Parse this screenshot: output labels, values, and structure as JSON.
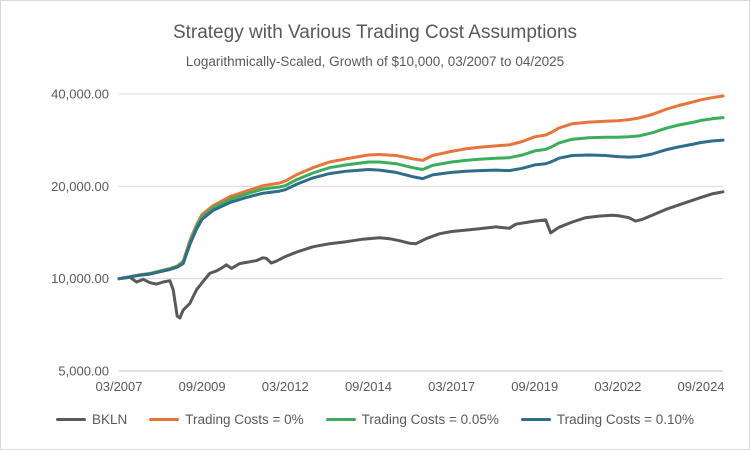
{
  "chart_data": {
    "type": "line",
    "title": "Strategy with Various Trading Cost Assumptions",
    "subtitle": "Logarithmically-Scaled, Growth of $10,000, 03/2007 to 04/2025",
    "y_scale": "log",
    "ylim": [
      5000,
      40000
    ],
    "xlim": [
      2007.17,
      2025.33
    ],
    "x_ticks": [
      {
        "x": 2007.17,
        "label": "03/2007"
      },
      {
        "x": 2009.67,
        "label": "09/2009"
      },
      {
        "x": 2012.17,
        "label": "03/2012"
      },
      {
        "x": 2014.67,
        "label": "09/2014"
      },
      {
        "x": 2017.17,
        "label": "03/2017"
      },
      {
        "x": 2019.67,
        "label": "09/2019"
      },
      {
        "x": 2022.17,
        "label": "03/2022"
      },
      {
        "x": 2024.67,
        "label": "09/2024"
      }
    ],
    "y_ticks": [
      {
        "y": 5000,
        "label": "5,000.00"
      },
      {
        "y": 10000,
        "label": "10,000.00"
      },
      {
        "y": 20000,
        "label": "20,000.00"
      },
      {
        "y": 40000,
        "label": "40,000.00"
      }
    ],
    "series": [
      {
        "name": "BKLN",
        "color": "#595959",
        "points": [
          [
            2007.17,
            10000
          ],
          [
            2007.5,
            10100
          ],
          [
            2007.7,
            9750
          ],
          [
            2007.9,
            9950
          ],
          [
            2008.1,
            9700
          ],
          [
            2008.3,
            9600
          ],
          [
            2008.5,
            9750
          ],
          [
            2008.7,
            9850
          ],
          [
            2008.8,
            9200
          ],
          [
            2008.92,
            7550
          ],
          [
            2009.0,
            7450
          ],
          [
            2009.1,
            7900
          ],
          [
            2009.3,
            8300
          ],
          [
            2009.5,
            9200
          ],
          [
            2009.7,
            9800
          ],
          [
            2009.9,
            10400
          ],
          [
            2010.1,
            10600
          ],
          [
            2010.3,
            10900
          ],
          [
            2010.4,
            11100
          ],
          [
            2010.55,
            10800
          ],
          [
            2010.8,
            11200
          ],
          [
            2011.0,
            11300
          ],
          [
            2011.3,
            11450
          ],
          [
            2011.5,
            11700
          ],
          [
            2011.6,
            11650
          ],
          [
            2011.75,
            11250
          ],
          [
            2011.9,
            11400
          ],
          [
            2012.17,
            11800
          ],
          [
            2012.5,
            12200
          ],
          [
            2013.0,
            12700
          ],
          [
            2013.5,
            13000
          ],
          [
            2014.0,
            13200
          ],
          [
            2014.5,
            13450
          ],
          [
            2014.67,
            13500
          ],
          [
            2015.0,
            13600
          ],
          [
            2015.3,
            13500
          ],
          [
            2015.6,
            13300
          ],
          [
            2015.9,
            13050
          ],
          [
            2016.1,
            13000
          ],
          [
            2016.4,
            13500
          ],
          [
            2016.8,
            14000
          ],
          [
            2017.17,
            14250
          ],
          [
            2017.6,
            14400
          ],
          [
            2018.0,
            14550
          ],
          [
            2018.5,
            14750
          ],
          [
            2018.9,
            14600
          ],
          [
            2019.1,
            15050
          ],
          [
            2019.5,
            15300
          ],
          [
            2019.67,
            15400
          ],
          [
            2020.0,
            15550
          ],
          [
            2020.15,
            14100
          ],
          [
            2020.4,
            14700
          ],
          [
            2020.8,
            15300
          ],
          [
            2021.2,
            15800
          ],
          [
            2021.6,
            16000
          ],
          [
            2022.0,
            16100
          ],
          [
            2022.17,
            16050
          ],
          [
            2022.5,
            15800
          ],
          [
            2022.7,
            15400
          ],
          [
            2022.9,
            15600
          ],
          [
            2023.2,
            16100
          ],
          [
            2023.6,
            16800
          ],
          [
            2024.0,
            17400
          ],
          [
            2024.4,
            18000
          ],
          [
            2024.67,
            18400
          ],
          [
            2025.0,
            18900
          ],
          [
            2025.33,
            19200
          ]
        ]
      },
      {
        "name": "Trading Costs = 0%",
        "color": "#e8743b",
        "points": [
          [
            2007.17,
            10000
          ],
          [
            2007.5,
            10150
          ],
          [
            2007.8,
            10300
          ],
          [
            2008.1,
            10400
          ],
          [
            2008.4,
            10600
          ],
          [
            2008.7,
            10800
          ],
          [
            2008.92,
            11000
          ],
          [
            2009.1,
            11400
          ],
          [
            2009.3,
            13300
          ],
          [
            2009.5,
            15000
          ],
          [
            2009.67,
            16200
          ],
          [
            2010.0,
            17300
          ],
          [
            2010.5,
            18500
          ],
          [
            2011.0,
            19300
          ],
          [
            2011.5,
            20100
          ],
          [
            2012.0,
            20500
          ],
          [
            2012.17,
            20800
          ],
          [
            2012.5,
            21800
          ],
          [
            2013.0,
            23000
          ],
          [
            2013.5,
            24000
          ],
          [
            2014.0,
            24600
          ],
          [
            2014.67,
            25300
          ],
          [
            2015.0,
            25400
          ],
          [
            2015.5,
            25200
          ],
          [
            2016.0,
            24600
          ],
          [
            2016.3,
            24300
          ],
          [
            2016.6,
            25200
          ],
          [
            2017.17,
            26000
          ],
          [
            2017.6,
            26500
          ],
          [
            2018.0,
            26800
          ],
          [
            2018.5,
            27100
          ],
          [
            2018.9,
            27300
          ],
          [
            2019.3,
            28000
          ],
          [
            2019.67,
            29000
          ],
          [
            2020.0,
            29400
          ],
          [
            2020.15,
            29900
          ],
          [
            2020.4,
            31000
          ],
          [
            2020.8,
            32000
          ],
          [
            2021.3,
            32400
          ],
          [
            2021.8,
            32600
          ],
          [
            2022.17,
            32700
          ],
          [
            2022.5,
            33000
          ],
          [
            2022.8,
            33400
          ],
          [
            2023.2,
            34300
          ],
          [
            2023.6,
            35600
          ],
          [
            2024.0,
            36700
          ],
          [
            2024.4,
            37600
          ],
          [
            2024.67,
            38300
          ],
          [
            2025.0,
            38900
          ],
          [
            2025.33,
            39400
          ]
        ]
      },
      {
        "name": "Trading Costs = 0.05%",
        "color": "#3aae5a",
        "points": [
          [
            2007.17,
            10000
          ],
          [
            2007.5,
            10140
          ],
          [
            2007.8,
            10280
          ],
          [
            2008.1,
            10380
          ],
          [
            2008.4,
            10570
          ],
          [
            2008.7,
            10760
          ],
          [
            2008.92,
            10950
          ],
          [
            2009.1,
            11300
          ],
          [
            2009.3,
            13100
          ],
          [
            2009.5,
            14800
          ],
          [
            2009.67,
            15900
          ],
          [
            2010.0,
            17000
          ],
          [
            2010.5,
            18100
          ],
          [
            2011.0,
            18900
          ],
          [
            2011.5,
            19600
          ],
          [
            2012.0,
            19900
          ],
          [
            2012.17,
            20100
          ],
          [
            2012.5,
            21000
          ],
          [
            2013.0,
            22100
          ],
          [
            2013.5,
            23000
          ],
          [
            2014.0,
            23500
          ],
          [
            2014.67,
            24000
          ],
          [
            2015.0,
            24000
          ],
          [
            2015.5,
            23700
          ],
          [
            2016.0,
            23000
          ],
          [
            2016.3,
            22700
          ],
          [
            2016.6,
            23400
          ],
          [
            2017.17,
            24000
          ],
          [
            2017.6,
            24300
          ],
          [
            2018.0,
            24500
          ],
          [
            2018.5,
            24700
          ],
          [
            2018.9,
            24800
          ],
          [
            2019.3,
            25300
          ],
          [
            2019.67,
            26100
          ],
          [
            2020.0,
            26400
          ],
          [
            2020.15,
            26800
          ],
          [
            2020.4,
            27700
          ],
          [
            2020.8,
            28500
          ],
          [
            2021.3,
            28800
          ],
          [
            2021.8,
            28900
          ],
          [
            2022.17,
            28900
          ],
          [
            2022.5,
            29000
          ],
          [
            2022.8,
            29200
          ],
          [
            2023.2,
            29900
          ],
          [
            2023.6,
            30900
          ],
          [
            2024.0,
            31700
          ],
          [
            2024.4,
            32300
          ],
          [
            2024.67,
            32800
          ],
          [
            2025.0,
            33200
          ],
          [
            2025.33,
            33500
          ]
        ]
      },
      {
        "name": "Trading Costs = 0.10%",
        "color": "#2e6e8a",
        "points": [
          [
            2007.17,
            10000
          ],
          [
            2007.5,
            10130
          ],
          [
            2007.8,
            10260
          ],
          [
            2008.1,
            10350
          ],
          [
            2008.4,
            10530
          ],
          [
            2008.7,
            10710
          ],
          [
            2008.92,
            10900
          ],
          [
            2009.1,
            11200
          ],
          [
            2009.3,
            12900
          ],
          [
            2009.5,
            14500
          ],
          [
            2009.67,
            15600
          ],
          [
            2010.0,
            16700
          ],
          [
            2010.5,
            17700
          ],
          [
            2011.0,
            18400
          ],
          [
            2011.5,
            19000
          ],
          [
            2012.0,
            19300
          ],
          [
            2012.17,
            19500
          ],
          [
            2012.5,
            20300
          ],
          [
            2013.0,
            21300
          ],
          [
            2013.5,
            22000
          ],
          [
            2014.0,
            22400
          ],
          [
            2014.67,
            22700
          ],
          [
            2015.0,
            22600
          ],
          [
            2015.5,
            22200
          ],
          [
            2016.0,
            21500
          ],
          [
            2016.3,
            21200
          ],
          [
            2016.6,
            21800
          ],
          [
            2017.17,
            22200
          ],
          [
            2017.6,
            22400
          ],
          [
            2018.0,
            22500
          ],
          [
            2018.5,
            22600
          ],
          [
            2018.9,
            22500
          ],
          [
            2019.3,
            22900
          ],
          [
            2019.67,
            23500
          ],
          [
            2020.0,
            23700
          ],
          [
            2020.15,
            24000
          ],
          [
            2020.4,
            24700
          ],
          [
            2020.8,
            25200
          ],
          [
            2021.3,
            25300
          ],
          [
            2021.8,
            25200
          ],
          [
            2022.17,
            25000
          ],
          [
            2022.5,
            24900
          ],
          [
            2022.8,
            25000
          ],
          [
            2023.2,
            25500
          ],
          [
            2023.6,
            26300
          ],
          [
            2024.0,
            26900
          ],
          [
            2024.4,
            27400
          ],
          [
            2024.67,
            27800
          ],
          [
            2025.0,
            28100
          ],
          [
            2025.33,
            28300
          ]
        ]
      }
    ]
  }
}
